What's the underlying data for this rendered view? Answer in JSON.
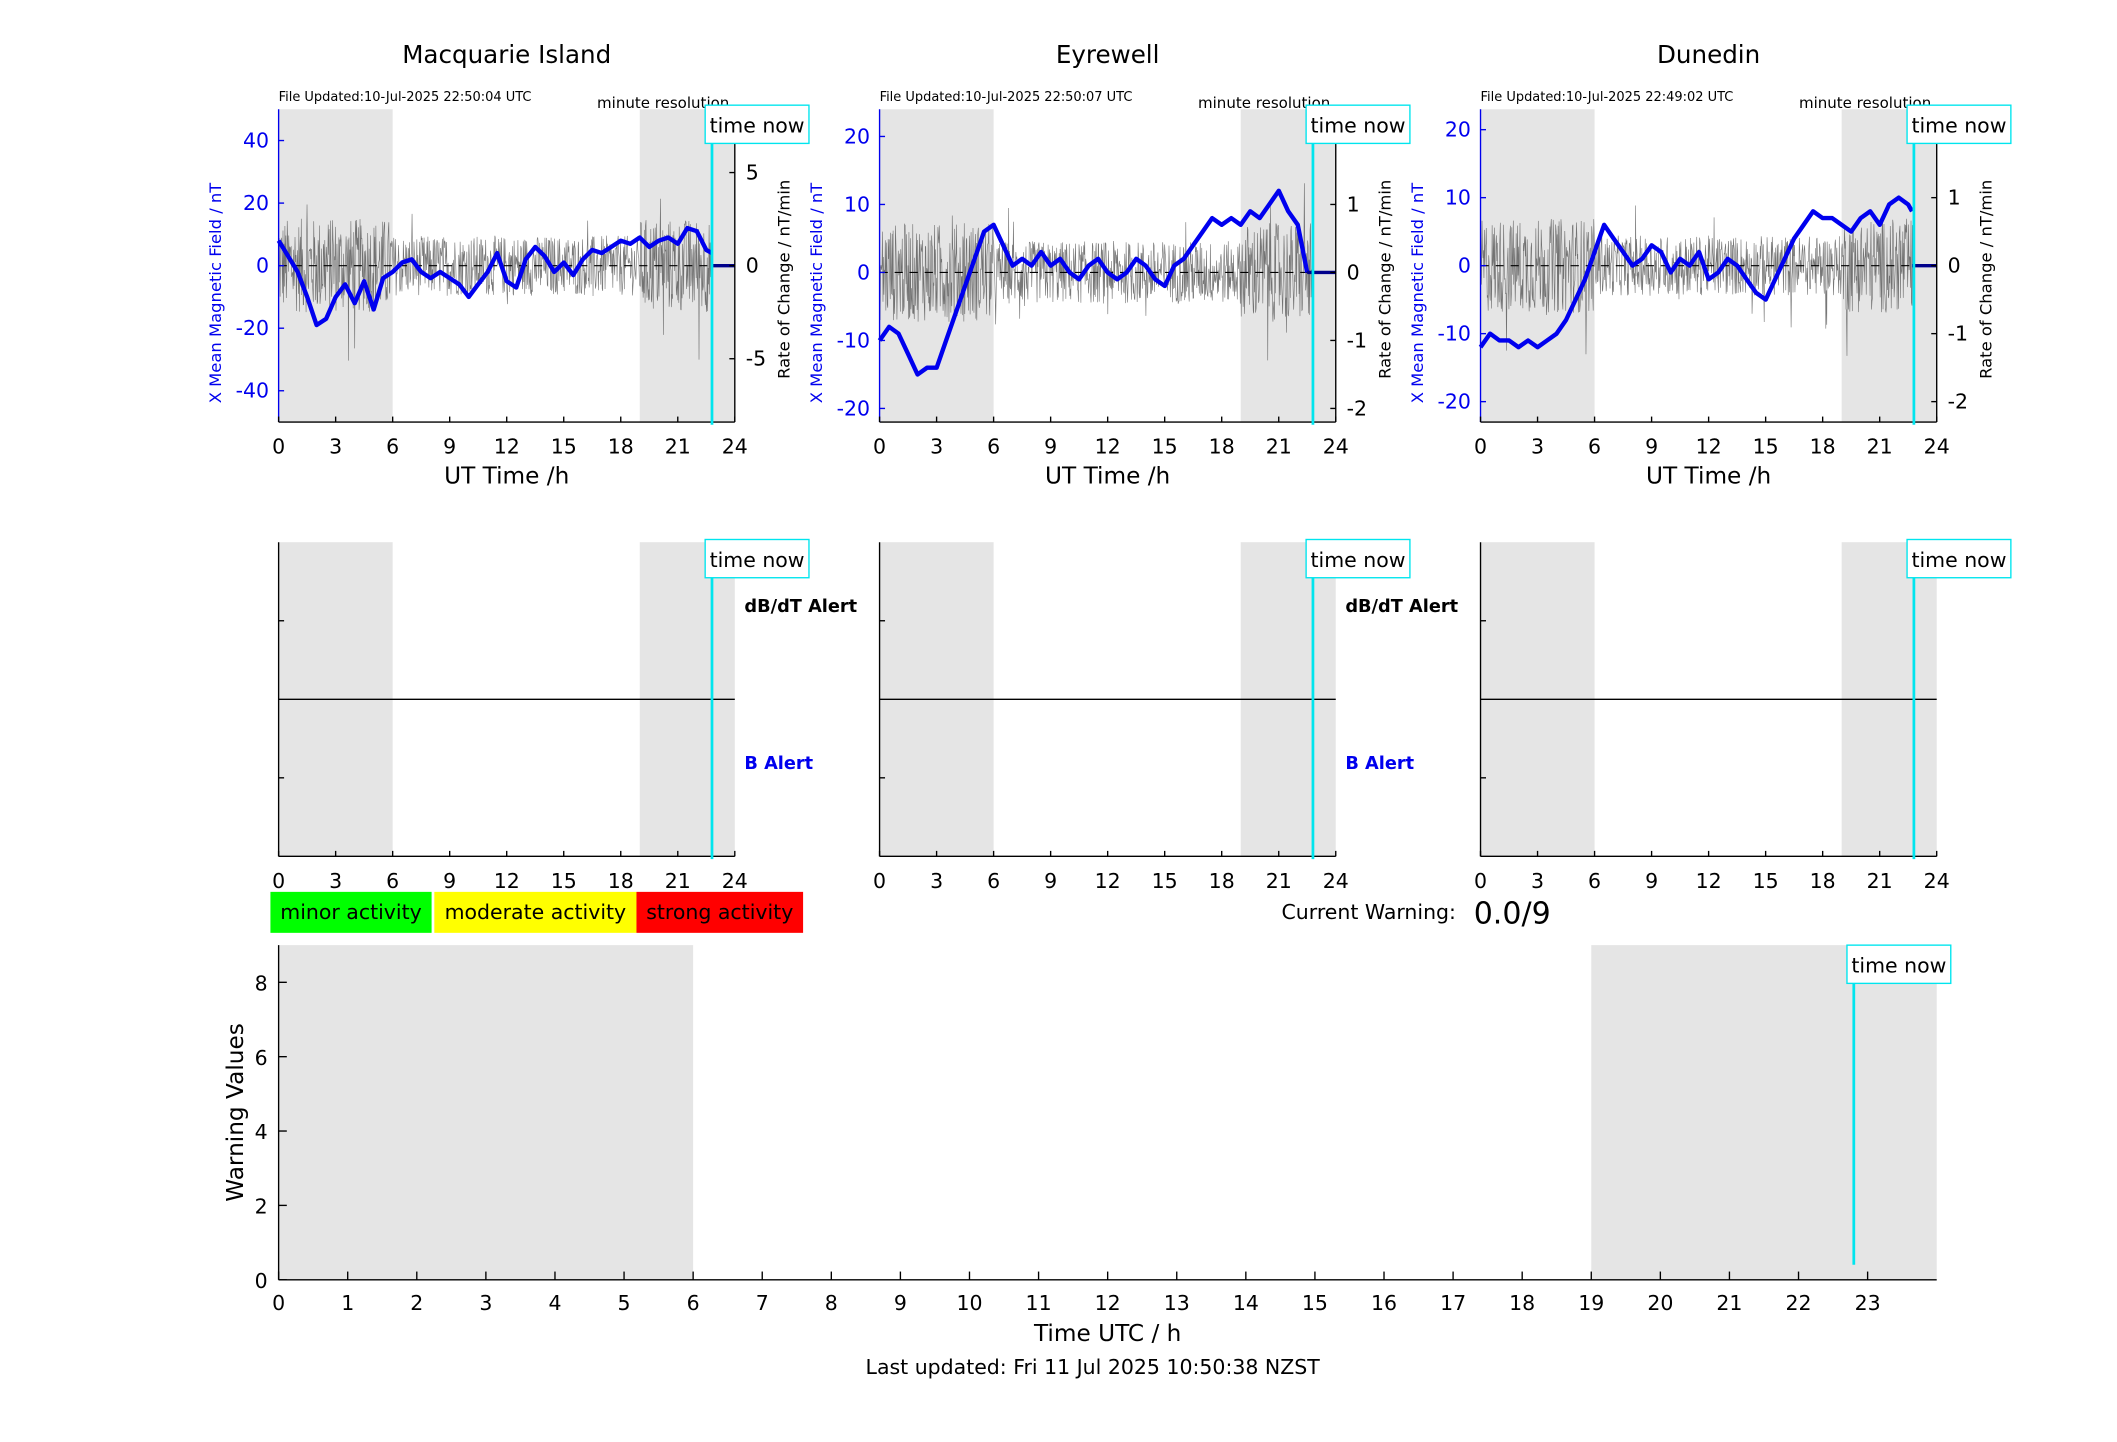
{
  "chart_data": [
    {
      "type": "line",
      "title": "Macquarie Island",
      "file_updated": "File Updated:10-Jul-2025 22:50:04 UTC",
      "resolution": "minute resolution",
      "xlabel": "UT Time /h",
      "ylabel_left": "X Mean Magnetic Field / nT",
      "ylabel_right": "Rate of Change / nT/min",
      "xlim": [
        0,
        24
      ],
      "xticks": [
        0,
        3,
        6,
        9,
        12,
        15,
        18,
        21,
        24
      ],
      "ylim_left": [
        -50,
        50
      ],
      "yticks_left": [
        -40,
        -20,
        0,
        20,
        40
      ],
      "ylim_right": [
        -8.4,
        8.4
      ],
      "yticks_right": [
        -5,
        0,
        5
      ],
      "night_shading": [
        [
          0,
          6
        ],
        [
          19,
          24
        ]
      ],
      "time_now": 22.8,
      "time_now_label": "time now",
      "series": [
        {
          "axis": "left",
          "color": "#0000ee",
          "x": [
            0,
            0.5,
            1,
            1.5,
            2,
            2.5,
            3,
            3.5,
            4,
            4.5,
            5,
            5.5,
            6,
            6.5,
            7,
            7.5,
            8,
            8.5,
            9,
            9.5,
            10,
            10.5,
            11,
            11.5,
            12,
            12.5,
            13,
            13.5,
            14,
            14.5,
            15,
            15.5,
            16,
            16.5,
            17,
            17.5,
            18,
            18.5,
            19,
            19.5,
            20,
            20.5,
            21,
            21.5,
            22,
            22.5,
            22.8
          ],
          "y": [
            8,
            3,
            -2,
            -10,
            -19,
            -17,
            -10,
            -6,
            -12,
            -5,
            -14,
            -4,
            -2,
            1,
            2,
            -2,
            -4,
            -2,
            -4,
            -6,
            -10,
            -6,
            -2,
            4,
            -5,
            -7,
            2,
            6,
            3,
            -2,
            1,
            -3,
            2,
            5,
            4,
            6,
            8,
            7,
            9,
            6,
            8,
            9,
            7,
            12,
            11,
            5,
            4
          ]
        },
        {
          "axis": "left",
          "color": "#00008b",
          "x": [
            22.8,
            24
          ],
          "y": [
            0,
            0
          ]
        }
      ]
    },
    {
      "type": "line",
      "title": "Eyrewell",
      "file_updated": "File Updated:10-Jul-2025 22:50:07 UTC",
      "resolution": "minute resolution",
      "xlabel": "UT Time /h",
      "ylabel_left": "X Mean Magnetic Field / nT",
      "ylabel_right": "Rate of Change / nT/min",
      "xlim": [
        0,
        24
      ],
      "xticks": [
        0,
        3,
        6,
        9,
        12,
        15,
        18,
        21,
        24
      ],
      "ylim_left": [
        -22,
        24
      ],
      "yticks_left": [
        -20,
        -10,
        0,
        10,
        20
      ],
      "ylim_right": [
        -2.2,
        2.4
      ],
      "yticks_right": [
        -2,
        -1,
        0,
        1,
        2
      ],
      "night_shading": [
        [
          0,
          6
        ],
        [
          19,
          24
        ]
      ],
      "time_now": 22.8,
      "time_now_label": "time now",
      "series": [
        {
          "axis": "left",
          "color": "#0000ee",
          "x": [
            0,
            0.5,
            1,
            1.5,
            2,
            2.5,
            3,
            3.5,
            4,
            4.5,
            5,
            5.5,
            6,
            6.5,
            7,
            7.5,
            8,
            8.5,
            9,
            9.5,
            10,
            10.5,
            11,
            11.5,
            12,
            12.5,
            13,
            13.5,
            14,
            14.5,
            15,
            15.5,
            16,
            16.5,
            17,
            17.5,
            18,
            18.5,
            19,
            19.5,
            20,
            20.5,
            21,
            21.5,
            22,
            22.5
          ],
          "y": [
            -10,
            -8,
            -9,
            -12,
            -15,
            -14,
            -14,
            -10,
            -6,
            -2,
            2,
            6,
            7,
            4,
            1,
            2,
            1,
            3,
            1,
            2,
            0,
            -1,
            1,
            2,
            0,
            -1,
            0,
            2,
            1,
            -1,
            -2,
            1,
            2,
            4,
            6,
            8,
            7,
            8,
            7,
            9,
            8,
            10,
            12,
            9,
            7,
            0
          ]
        },
        {
          "axis": "left",
          "color": "#00008b",
          "x": [
            22.5,
            24
          ],
          "y": [
            0,
            0
          ]
        }
      ]
    },
    {
      "type": "line",
      "title": "Dunedin",
      "file_updated": "File Updated:10-Jul-2025 22:49:02 UTC",
      "resolution": "minute resolution",
      "xlabel": "UT Time /h",
      "ylabel_left": "X Mean Magnetic Field / nT",
      "ylabel_right": "Rate of Change / nT/min",
      "xlim": [
        0,
        24
      ],
      "xticks": [
        0,
        3,
        6,
        9,
        12,
        15,
        18,
        21,
        24
      ],
      "ylim_left": [
        -23,
        23
      ],
      "yticks_left": [
        -20,
        -10,
        0,
        10,
        20
      ],
      "ylim_right": [
        -2.3,
        2.3
      ],
      "yticks_right": [
        -2,
        -1,
        0,
        1,
        2
      ],
      "night_shading": [
        [
          0,
          6
        ],
        [
          19,
          24
        ]
      ],
      "time_now": 22.8,
      "time_now_label": "time now",
      "series": [
        {
          "axis": "left",
          "color": "#0000ee",
          "x": [
            0,
            0.5,
            1,
            1.5,
            2,
            2.5,
            3,
            3.5,
            4,
            4.5,
            5,
            5.5,
            6,
            6.5,
            7,
            7.5,
            8,
            8.5,
            9,
            9.5,
            10,
            10.5,
            11,
            11.5,
            12,
            12.5,
            13,
            13.5,
            14,
            14.5,
            15,
            15.5,
            16,
            16.5,
            17,
            17.5,
            18,
            18.5,
            19,
            19.5,
            20,
            20.5,
            21,
            21.5,
            22,
            22.5,
            22.7
          ],
          "y": [
            -12,
            -10,
            -11,
            -11,
            -12,
            -11,
            -12,
            -11,
            -10,
            -8,
            -5,
            -2,
            2,
            6,
            4,
            2,
            0,
            1,
            3,
            2,
            -1,
            1,
            0,
            2,
            -2,
            -1,
            1,
            0,
            -2,
            -4,
            -5,
            -2,
            1,
            4,
            6,
            8,
            7,
            7,
            6,
            5,
            7,
            8,
            6,
            9,
            10,
            9,
            8
          ]
        },
        {
          "axis": "left",
          "color": "#00008b",
          "x": [
            22.7,
            24
          ],
          "y": [
            0,
            0
          ]
        }
      ]
    },
    {
      "type": "line",
      "panel": "Macquarie Island alerts",
      "xlim": [
        0,
        24
      ],
      "xticks": [
        0,
        3,
        6,
        9,
        12,
        15,
        18,
        21,
        24
      ],
      "dbdt_label": "dB/dT Alert",
      "b_label": "B Alert",
      "night_shading": [
        [
          0,
          6
        ],
        [
          19,
          24
        ]
      ],
      "time_now": 22.8,
      "time_now_label": "time now"
    },
    {
      "type": "line",
      "panel": "Eyrewell alerts",
      "xlim": [
        0,
        24
      ],
      "xticks": [
        0,
        3,
        6,
        9,
        12,
        15,
        18,
        21,
        24
      ],
      "dbdt_label": "dB/dT Alert",
      "b_label": "B Alert",
      "night_shading": [
        [
          0,
          6
        ],
        [
          19,
          24
        ]
      ],
      "time_now": 22.8,
      "time_now_label": "time now"
    },
    {
      "type": "line",
      "panel": "Dunedin alerts",
      "xlim": [
        0,
        24
      ],
      "xticks": [
        0,
        3,
        6,
        9,
        12,
        15,
        18,
        21,
        24
      ],
      "dbdt_label": "",
      "b_label": "",
      "night_shading": [
        [
          0,
          6
        ],
        [
          19,
          24
        ]
      ],
      "time_now": 22.8,
      "time_now_label": "time now"
    },
    {
      "type": "bar",
      "panel": "warning values",
      "xlabel": "Time UTC / h",
      "ylabel": "Warning Values",
      "xlim": [
        0,
        24
      ],
      "xticks": [
        0,
        1,
        2,
        3,
        4,
        5,
        6,
        7,
        8,
        9,
        10,
        11,
        12,
        13,
        14,
        15,
        16,
        17,
        18,
        19,
        20,
        21,
        22,
        23
      ],
      "ylim": [
        0,
        9
      ],
      "yticks": [
        0,
        2,
        4,
        6,
        8
      ],
      "night_shading": [
        [
          0,
          6
        ],
        [
          19,
          24
        ]
      ],
      "time_now": 22.8,
      "time_now_label": "time now",
      "values": []
    }
  ],
  "legend": [
    {
      "label": "minor activity",
      "color": "#00ff00"
    },
    {
      "label": "moderate activity",
      "color": "#ffff00"
    },
    {
      "label": "strong activity",
      "color": "#ff0000"
    }
  ],
  "warning": {
    "label": "Current Warning:",
    "value": "0.0/9"
  },
  "footer": {
    "last_updated": "Last updated: Fri 11 Jul 2025 10:50:38 NZST"
  }
}
